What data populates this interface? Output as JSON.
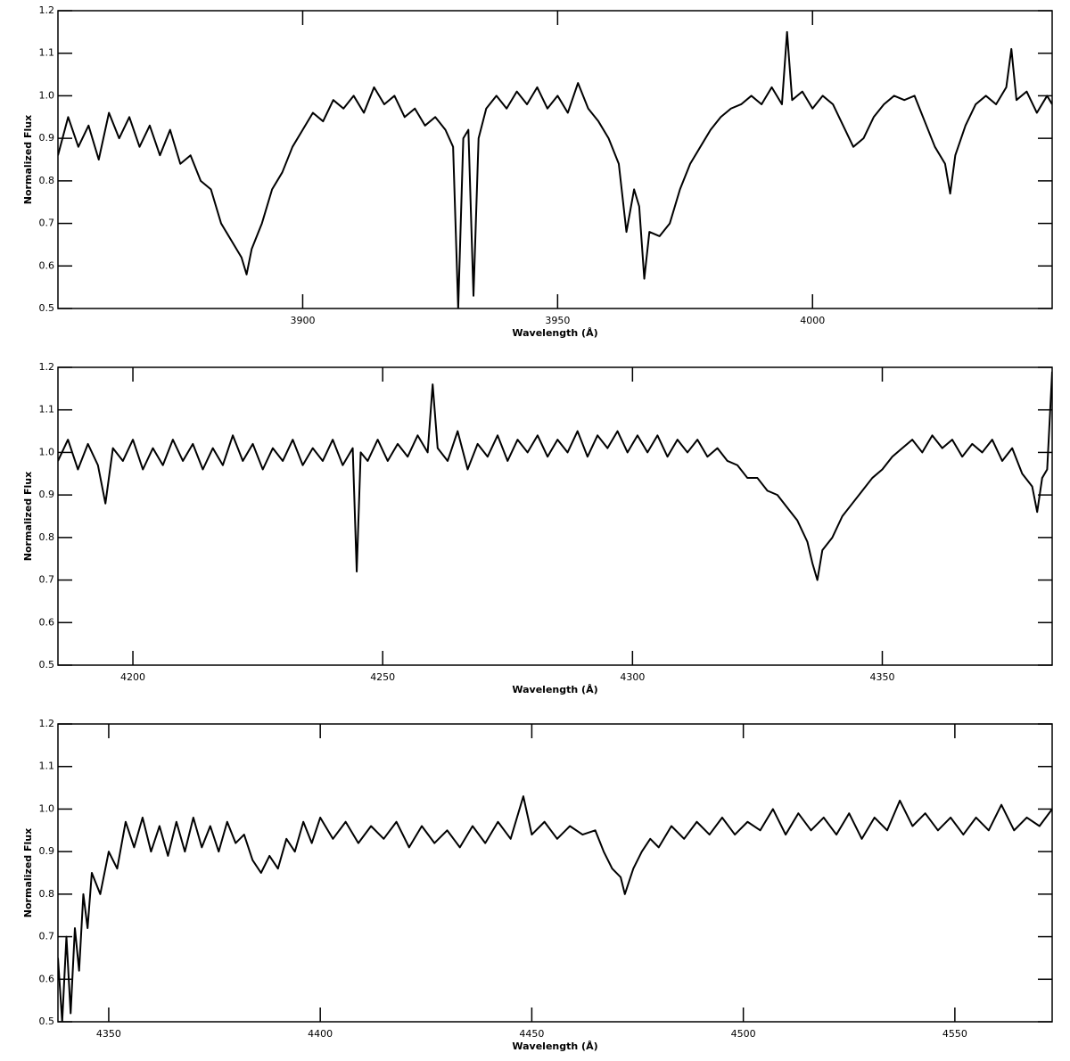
{
  "chart_data": [
    {
      "type": "line",
      "x_label": "Wavelength (Å)",
      "y_label": "Normalized Flux",
      "color": "#000000",
      "xlim": [
        3852,
        4047
      ],
      "ylim": [
        0.5,
        1.2
      ],
      "xticks": [
        3900,
        3950,
        4000
      ],
      "yticks": [
        0.5,
        0.6,
        0.7,
        0.8,
        0.9,
        {
          "value": 1.0,
          "label": "1.0"
        },
        1.1,
        1.2
      ],
      "x": [
        3852,
        3854,
        3856,
        3858,
        3860,
        3862,
        3864,
        3866,
        3868,
        3870,
        3872,
        3874,
        3876,
        3878,
        3880,
        3882,
        3884,
        3886,
        3888,
        3889,
        3890,
        3892,
        3894,
        3896,
        3898,
        3900,
        3902,
        3904,
        3906,
        3908,
        3910,
        3912,
        3914,
        3916,
        3918,
        3920,
        3922,
        3924,
        3926,
        3928,
        3929.5,
        3930.5,
        3931.5,
        3932.5,
        3933.5,
        3934.5,
        3936,
        3938,
        3940,
        3942,
        3944,
        3946,
        3948,
        3950,
        3952,
        3954,
        3956,
        3958,
        3960,
        3962,
        3963.5,
        3965,
        3966,
        3967,
        3968,
        3970,
        3972,
        3974,
        3976,
        3978,
        3980,
        3982,
        3984,
        3986,
        3988,
        3990,
        3992,
        3994,
        3995,
        3996,
        3998,
        4000,
        4002,
        4004,
        4006,
        4008,
        4010,
        4012,
        4014,
        4016,
        4018,
        4020,
        4022,
        4024,
        4026,
        4027,
        4028,
        4030,
        4032,
        4034,
        4036,
        4038,
        4039,
        4040,
        4042,
        4044,
        4046,
        4047
      ],
      "values": [
        0.86,
        0.95,
        0.88,
        0.93,
        0.85,
        0.96,
        0.9,
        0.95,
        0.88,
        0.93,
        0.86,
        0.92,
        0.84,
        0.86,
        0.8,
        0.78,
        0.7,
        0.66,
        0.62,
        0.58,
        0.64,
        0.7,
        0.78,
        0.82,
        0.88,
        0.92,
        0.96,
        0.94,
        0.99,
        0.97,
        1.0,
        0.96,
        1.02,
        0.98,
        1.0,
        0.95,
        0.97,
        0.93,
        0.95,
        0.92,
        0.88,
        0.5,
        0.9,
        0.92,
        0.53,
        0.9,
        0.97,
        1.0,
        0.97,
        1.01,
        0.98,
        1.02,
        0.97,
        1.0,
        0.96,
        1.03,
        0.97,
        0.94,
        0.9,
        0.84,
        0.68,
        0.78,
        0.74,
        0.57,
        0.68,
        0.67,
        0.7,
        0.78,
        0.84,
        0.88,
        0.92,
        0.95,
        0.97,
        0.98,
        1.0,
        0.98,
        1.02,
        0.98,
        1.15,
        0.99,
        1.01,
        0.97,
        1.0,
        0.98,
        0.93,
        0.88,
        0.9,
        0.95,
        0.98,
        1.0,
        0.99,
        1.0,
        0.94,
        0.88,
        0.84,
        0.77,
        0.86,
        0.93,
        0.98,
        1.0,
        0.98,
        1.02,
        1.11,
        0.99,
        1.01,
        0.96,
        1.0,
        0.98
      ]
    },
    {
      "type": "line",
      "x_label": "Wavelength (Å)",
      "y_label": "Normalized Flux",
      "color": "#000000",
      "xlim": [
        4185,
        4384
      ],
      "ylim": [
        0.5,
        1.2
      ],
      "xticks": [
        4200,
        4250,
        4300,
        4350
      ],
      "yticks": [
        0.5,
        0.6,
        0.7,
        0.8,
        0.9,
        {
          "value": 1.0,
          "label": "1.0"
        },
        1.1,
        1.2
      ],
      "x": [
        4185,
        4187,
        4189,
        4191,
        4193,
        4194.5,
        4196,
        4198,
        4200,
        4202,
        4204,
        4206,
        4208,
        4210,
        4212,
        4214,
        4216,
        4218,
        4220,
        4222,
        4224,
        4226,
        4228,
        4230,
        4232,
        4234,
        4236,
        4238,
        4240,
        4242,
        4244,
        4244.8,
        4245.6,
        4247,
        4249,
        4251,
        4253,
        4255,
        4257,
        4259,
        4260,
        4261,
        4263,
        4265,
        4267,
        4269,
        4271,
        4273,
        4275,
        4277,
        4279,
        4281,
        4283,
        4285,
        4287,
        4289,
        4291,
        4293,
        4295,
        4297,
        4299,
        4301,
        4303,
        4305,
        4307,
        4309,
        4311,
        4313,
        4315,
        4317,
        4319,
        4321,
        4323,
        4325,
        4327,
        4329,
        4331,
        4333,
        4335,
        4336,
        4337,
        4338,
        4340,
        4342,
        4344,
        4346,
        4348,
        4350,
        4352,
        4354,
        4356,
        4358,
        4360,
        4362,
        4364,
        4366,
        4368,
        4370,
        4372,
        4374,
        4376,
        4378,
        4380,
        4381,
        4382,
        4383,
        4384
      ],
      "values": [
        0.98,
        1.03,
        0.96,
        1.02,
        0.97,
        0.88,
        1.01,
        0.98,
        1.03,
        0.96,
        1.01,
        0.97,
        1.03,
        0.98,
        1.02,
        0.96,
        1.01,
        0.97,
        1.04,
        0.98,
        1.02,
        0.96,
        1.01,
        0.98,
        1.03,
        0.97,
        1.01,
        0.98,
        1.03,
        0.97,
        1.01,
        0.72,
        1.0,
        0.98,
        1.03,
        0.98,
        1.02,
        0.99,
        1.04,
        1.0,
        1.16,
        1.01,
        0.98,
        1.05,
        0.96,
        1.02,
        0.99,
        1.04,
        0.98,
        1.03,
        1.0,
        1.04,
        0.99,
        1.03,
        1.0,
        1.05,
        0.99,
        1.04,
        1.01,
        1.05,
        1.0,
        1.04,
        1.0,
        1.04,
        0.99,
        1.03,
        1.0,
        1.03,
        0.99,
        1.01,
        0.98,
        0.97,
        0.94,
        0.94,
        0.91,
        0.9,
        0.87,
        0.84,
        0.79,
        0.74,
        0.7,
        0.77,
        0.8,
        0.85,
        0.88,
        0.91,
        0.94,
        0.96,
        0.99,
        1.01,
        1.03,
        1.0,
        1.04,
        1.01,
        1.03,
        0.99,
        1.02,
        1.0,
        1.03,
        0.98,
        1.01,
        0.95,
        0.92,
        0.86,
        0.94,
        0.96,
        1.19
      ]
    },
    {
      "type": "line",
      "x_label": "Wavelength (Å)",
      "y_label": "Normalized Flux",
      "color": "#000000",
      "xlim": [
        4338,
        4573
      ],
      "ylim": [
        0.5,
        1.2
      ],
      "xticks": [
        4350,
        4400,
        4450,
        4500,
        4550
      ],
      "yticks": [
        0.5,
        0.6,
        0.7,
        0.8,
        0.9,
        {
          "value": 1.0,
          "label": "1.0"
        },
        1.1,
        1.2
      ],
      "x": [
        4338,
        4339,
        4340,
        4341,
        4342,
        4343,
        4344,
        4345,
        4346,
        4348,
        4350,
        4352,
        4354,
        4356,
        4358,
        4360,
        4362,
        4364,
        4366,
        4368,
        4370,
        4372,
        4374,
        4376,
        4378,
        4380,
        4382,
        4384,
        4386,
        4388,
        4390,
        4392,
        4394,
        4396,
        4398,
        4400,
        4403,
        4406,
        4409,
        4412,
        4415,
        4418,
        4421,
        4424,
        4427,
        4430,
        4433,
        4436,
        4439,
        4442,
        4445,
        4448,
        4450,
        4453,
        4456,
        4459,
        4462,
        4465,
        4467,
        4469,
        4471,
        4472,
        4474,
        4476,
        4478,
        4480,
        4483,
        4486,
        4489,
        4492,
        4495,
        4498,
        4501,
        4504,
        4507,
        4510,
        4513,
        4516,
        4519,
        4522,
        4525,
        4528,
        4531,
        4534,
        4537,
        4540,
        4543,
        4546,
        4549,
        4552,
        4555,
        4558,
        4561,
        4564,
        4567,
        4570,
        4573
      ],
      "values": [
        0.65,
        0.5,
        0.7,
        0.52,
        0.72,
        0.62,
        0.8,
        0.72,
        0.85,
        0.8,
        0.9,
        0.86,
        0.97,
        0.91,
        0.98,
        0.9,
        0.96,
        0.89,
        0.97,
        0.9,
        0.98,
        0.91,
        0.96,
        0.9,
        0.97,
        0.92,
        0.94,
        0.88,
        0.85,
        0.89,
        0.86,
        0.93,
        0.9,
        0.97,
        0.92,
        0.98,
        0.93,
        0.97,
        0.92,
        0.96,
        0.93,
        0.97,
        0.91,
        0.96,
        0.92,
        0.95,
        0.91,
        0.96,
        0.92,
        0.97,
        0.93,
        1.03,
        0.94,
        0.97,
        0.93,
        0.96,
        0.94,
        0.95,
        0.9,
        0.86,
        0.84,
        0.8,
        0.86,
        0.9,
        0.93,
        0.91,
        0.96,
        0.93,
        0.97,
        0.94,
        0.98,
        0.94,
        0.97,
        0.95,
        1.0,
        0.94,
        0.99,
        0.95,
        0.98,
        0.94,
        0.99,
        0.93,
        0.98,
        0.95,
        1.02,
        0.96,
        0.99,
        0.95,
        0.98,
        0.94,
        0.98,
        0.95,
        1.01,
        0.95,
        0.98,
        0.96,
        1.0
      ]
    }
  ]
}
